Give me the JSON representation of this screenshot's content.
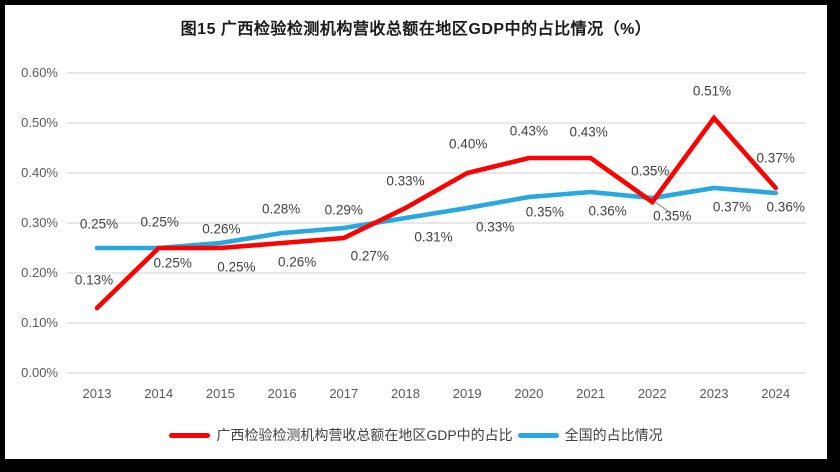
{
  "figure": {
    "title": "图15 广西检验检测机构营收总额在地区GDP中的占比情况（%）"
  },
  "chart_data": {
    "type": "line",
    "title": "图15 广西检验检测机构营收总额在地区GDP中的占比情况（%）",
    "categories": [
      "2013",
      "2014",
      "2015",
      "2016",
      "2017",
      "2018",
      "2019",
      "2020",
      "2021",
      "2022",
      "2023",
      "2024"
    ],
    "series": [
      {
        "name": "广西检验检测机构营收总额在地区GDP中的占比",
        "color": "#fe0000",
        "values": [
          0.13,
          0.25,
          0.25,
          0.26,
          0.27,
          0.33,
          0.4,
          0.43,
          0.43,
          0.35,
          0.51,
          0.37
        ],
        "labels": [
          "0.13%",
          "0.25%",
          "0.25%",
          "0.26%",
          "0.27%",
          "0.33%",
          "0.40%",
          "0.43%",
          "0.43%",
          "0.35%",
          "0.51%",
          "0.37%"
        ]
      },
      {
        "name": "全国的占比情况",
        "color": "#29a8e0",
        "values": [
          0.25,
          0.25,
          0.26,
          0.28,
          0.29,
          0.31,
          0.33,
          0.35,
          0.36,
          0.35,
          0.37,
          0.36
        ],
        "labels": [
          "0.25%",
          "0.25%",
          "0.26%",
          "0.28%",
          "0.29%",
          "0.31%",
          "0.33%",
          "0.35%",
          "0.36%",
          "0.35%",
          "0.37%",
          "0.36%"
        ]
      }
    ],
    "y_ticks": [
      "0.60%",
      "0.50%",
      "0.40%",
      "0.30%",
      "0.20%",
      "0.10%",
      "0.00%"
    ],
    "ylim": [
      0,
      0.6
    ],
    "ytick_step": 0.1,
    "unit": "%",
    "grid": true,
    "legend_position": "bottom",
    "annotation": {
      "note": "leader line from 2022 national point to its 0.35% label"
    }
  },
  "colors": {
    "frame": "#000000",
    "background": "#ffffff",
    "gridline": "#d9d9d9",
    "axis_text": "#595959",
    "label_text": "#404040",
    "leader_line": "#a6a6a6"
  }
}
